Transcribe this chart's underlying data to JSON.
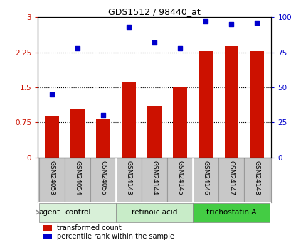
{
  "title": "GDS1512 / 98440_at",
  "categories": [
    "GSM24053",
    "GSM24054",
    "GSM24055",
    "GSM24143",
    "GSM24144",
    "GSM24145",
    "GSM24146",
    "GSM24147",
    "GSM24148"
  ],
  "bar_values": [
    0.88,
    1.02,
    0.82,
    1.62,
    1.1,
    1.5,
    2.27,
    2.38,
    2.27
  ],
  "scatter_values_pct": [
    45,
    78,
    30,
    93,
    82,
    78,
    97,
    95,
    96
  ],
  "bar_color": "#cc1100",
  "scatter_color": "#0000cc",
  "ylim_left": [
    0,
    3
  ],
  "ylim_right": [
    0,
    100
  ],
  "yticks_left": [
    0,
    0.75,
    1.5,
    2.25,
    3
  ],
  "ytick_labels_right": [
    "0",
    "25",
    "50",
    "75",
    "100%"
  ],
  "yticks_right": [
    0,
    25,
    50,
    75,
    100
  ],
  "group_configs": [
    {
      "start": 0,
      "end": 2,
      "label": "control",
      "color": "#d8f0d8"
    },
    {
      "start": 3,
      "end": 5,
      "label": "retinoic acid",
      "color": "#c8ecc8"
    },
    {
      "start": 6,
      "end": 8,
      "label": "trichostatin A",
      "color": "#44cc44"
    }
  ],
  "agent_label": "agent",
  "legend_items": [
    {
      "label": "transformed count",
      "color": "#cc1100",
      "marker": "s"
    },
    {
      "label": "percentile rank within the sample",
      "color": "#0000cc",
      "marker": "s"
    }
  ],
  "background_color": "#ffffff",
  "tick_label_color_left": "#cc1100",
  "tick_label_color_right": "#0000cc",
  "bar_width": 0.55,
  "gsm_bg_color": "#c8c8c8",
  "gsm_border_color": "#999999"
}
